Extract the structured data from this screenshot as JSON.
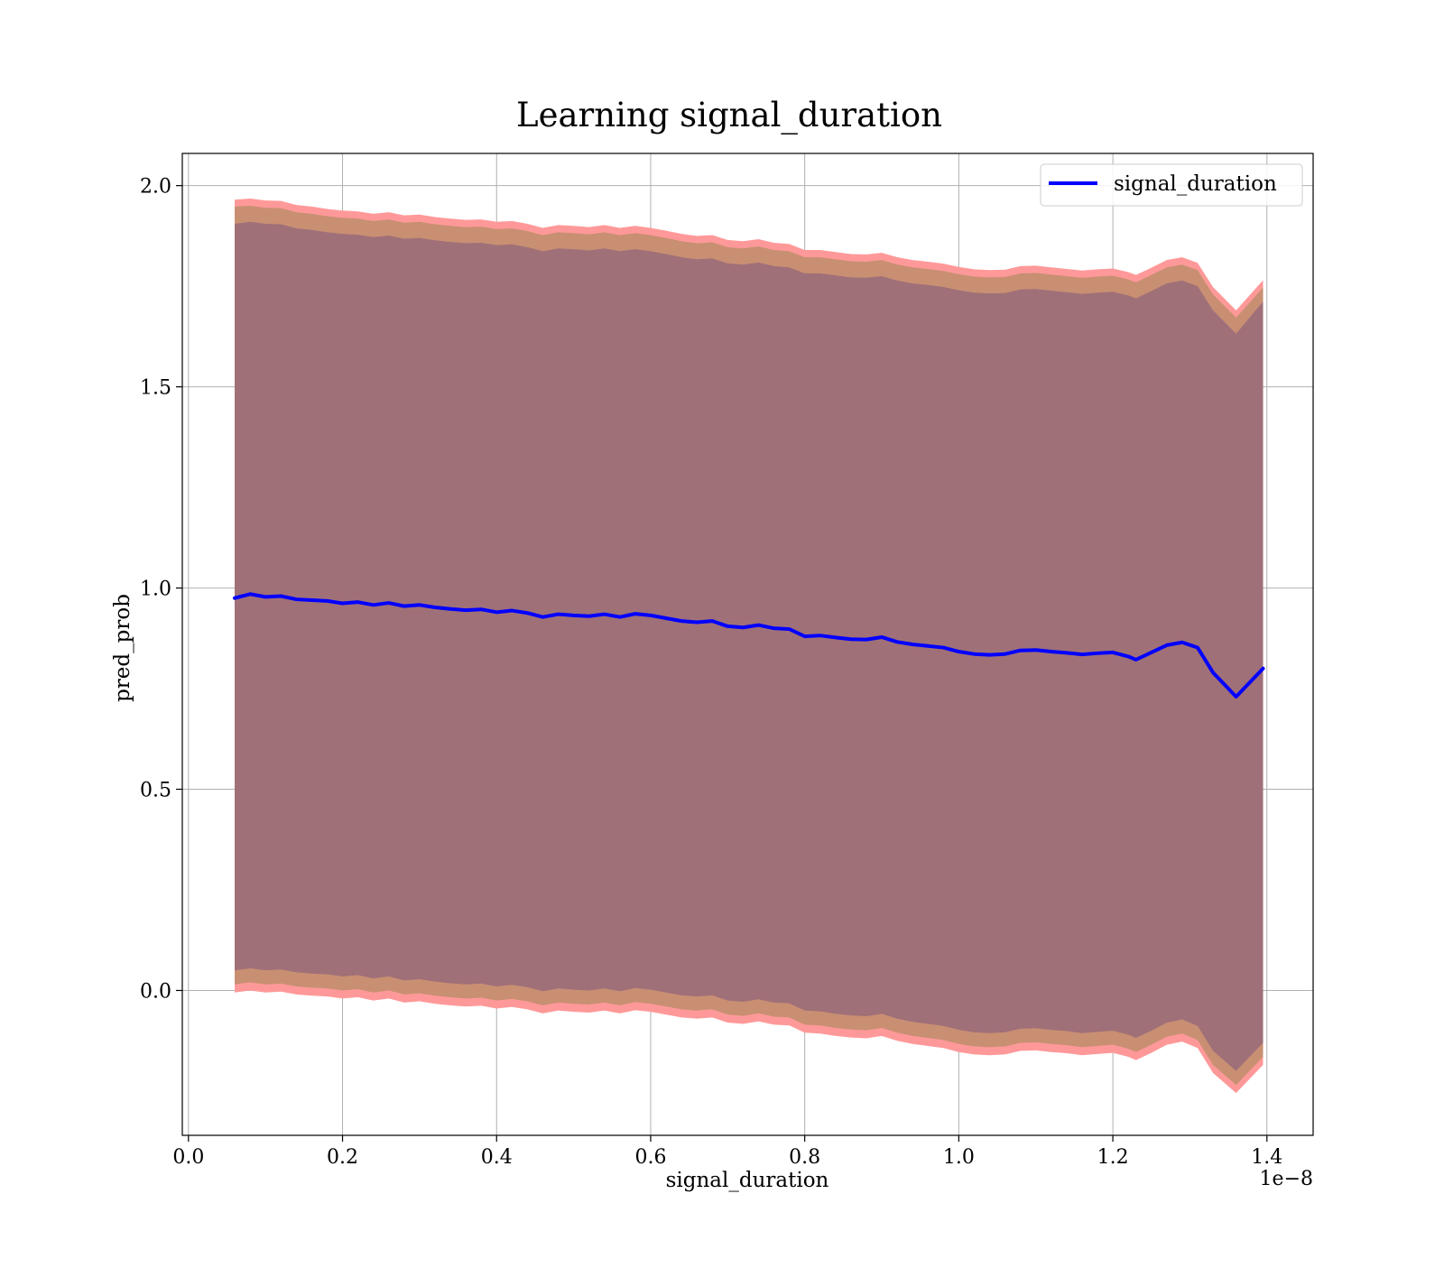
{
  "chart_data": {
    "type": "area",
    "title": "Learning signal_duration",
    "xlabel": "signal_duration",
    "ylabel": "pred_prob",
    "x_offset_label": "1e−8",
    "xlim": [
      -0.008,
      1.46
    ],
    "ylim": [
      -0.36,
      2.08
    ],
    "x_ticks": [
      0.0,
      0.2,
      0.4,
      0.6,
      0.8,
      1.0,
      1.2,
      1.4
    ],
    "x_tick_labels": [
      "0.0",
      "0.2",
      "0.4",
      "0.6",
      "0.8",
      "1.0",
      "1.2",
      "1.4"
    ],
    "y_ticks": [
      0.0,
      0.5,
      1.0,
      1.5,
      2.0
    ],
    "y_tick_labels": [
      "0.0",
      "0.5",
      "1.0",
      "1.5",
      "2.0"
    ],
    "grid": true,
    "legend_position": "top-right",
    "colors": {
      "line": "#0000ff",
      "band_outer": "#ff9999",
      "band_middle": "#c98f73",
      "band_inner": "#a07078",
      "grid": "#b0b0b0"
    },
    "series": [
      {
        "name": "signal_duration",
        "x": [
          0.06,
          0.08,
          0.1,
          0.12,
          0.14,
          0.16,
          0.18,
          0.2,
          0.22,
          0.24,
          0.26,
          0.28,
          0.3,
          0.32,
          0.34,
          0.36,
          0.38,
          0.4,
          0.42,
          0.44,
          0.46,
          0.48,
          0.5,
          0.52,
          0.54,
          0.56,
          0.58,
          0.6,
          0.62,
          0.64,
          0.66,
          0.68,
          0.7,
          0.72,
          0.74,
          0.76,
          0.78,
          0.8,
          0.82,
          0.84,
          0.86,
          0.88,
          0.9,
          0.92,
          0.94,
          0.96,
          0.98,
          1.0,
          1.02,
          1.04,
          1.06,
          1.08,
          1.1,
          1.12,
          1.14,
          1.16,
          1.18,
          1.2,
          1.22,
          1.23,
          1.25,
          1.27,
          1.29,
          1.31,
          1.33,
          1.36,
          1.395
        ],
        "y": [
          0.975,
          0.985,
          0.978,
          0.98,
          0.972,
          0.97,
          0.968,
          0.962,
          0.965,
          0.958,
          0.963,
          0.955,
          0.958,
          0.952,
          0.948,
          0.945,
          0.947,
          0.94,
          0.944,
          0.938,
          0.928,
          0.935,
          0.932,
          0.93,
          0.935,
          0.928,
          0.936,
          0.932,
          0.925,
          0.918,
          0.915,
          0.918,
          0.905,
          0.902,
          0.908,
          0.9,
          0.898,
          0.88,
          0.882,
          0.877,
          0.873,
          0.872,
          0.878,
          0.866,
          0.86,
          0.856,
          0.852,
          0.842,
          0.836,
          0.834,
          0.836,
          0.845,
          0.846,
          0.842,
          0.839,
          0.835,
          0.838,
          0.84,
          0.83,
          0.822,
          0.84,
          0.858,
          0.865,
          0.852,
          0.79,
          0.73,
          0.8
        ],
        "band_outer_upper": [
          1.965,
          1.968,
          1.963,
          1.962,
          1.952,
          1.948,
          1.942,
          1.938,
          1.936,
          1.93,
          1.934,
          1.926,
          1.928,
          1.922,
          1.918,
          1.915,
          1.916,
          1.91,
          1.912,
          1.905,
          1.895,
          1.902,
          1.9,
          1.897,
          1.902,
          1.895,
          1.9,
          1.895,
          1.888,
          1.88,
          1.875,
          1.877,
          1.865,
          1.862,
          1.867,
          1.858,
          1.855,
          1.84,
          1.84,
          1.835,
          1.83,
          1.829,
          1.833,
          1.822,
          1.815,
          1.811,
          1.806,
          1.798,
          1.792,
          1.79,
          1.791,
          1.8,
          1.801,
          1.797,
          1.793,
          1.789,
          1.792,
          1.794,
          1.785,
          1.778,
          1.796,
          1.815,
          1.822,
          1.808,
          1.748,
          1.69,
          1.765
        ],
        "band_middle_upper": [
          1.948,
          1.95,
          1.945,
          1.944,
          1.934,
          1.93,
          1.924,
          1.92,
          1.918,
          1.912,
          1.916,
          1.908,
          1.91,
          1.904,
          1.9,
          1.897,
          1.898,
          1.892,
          1.894,
          1.887,
          1.877,
          1.884,
          1.882,
          1.879,
          1.884,
          1.877,
          1.882,
          1.877,
          1.87,
          1.862,
          1.857,
          1.859,
          1.847,
          1.844,
          1.849,
          1.84,
          1.837,
          1.822,
          1.822,
          1.817,
          1.812,
          1.811,
          1.815,
          1.804,
          1.797,
          1.793,
          1.788,
          1.78,
          1.774,
          1.772,
          1.773,
          1.782,
          1.783,
          1.779,
          1.775,
          1.771,
          1.774,
          1.776,
          1.767,
          1.76,
          1.778,
          1.797,
          1.804,
          1.79,
          1.73,
          1.672,
          1.747
        ],
        "band_inner_upper": [
          1.905,
          1.91,
          1.905,
          1.904,
          1.894,
          1.89,
          1.884,
          1.88,
          1.878,
          1.872,
          1.876,
          1.868,
          1.87,
          1.864,
          1.86,
          1.857,
          1.858,
          1.852,
          1.854,
          1.847,
          1.837,
          1.844,
          1.842,
          1.839,
          1.844,
          1.837,
          1.842,
          1.837,
          1.83,
          1.822,
          1.817,
          1.819,
          1.807,
          1.804,
          1.809,
          1.8,
          1.797,
          1.782,
          1.782,
          1.777,
          1.772,
          1.771,
          1.775,
          1.764,
          1.757,
          1.753,
          1.748,
          1.74,
          1.734,
          1.732,
          1.733,
          1.742,
          1.743,
          1.739,
          1.735,
          1.731,
          1.734,
          1.736,
          1.727,
          1.72,
          1.738,
          1.757,
          1.764,
          1.75,
          1.69,
          1.632,
          1.712
        ],
        "band_inner_lower": [
          0.05,
          0.055,
          0.05,
          0.052,
          0.045,
          0.042,
          0.04,
          0.035,
          0.038,
          0.03,
          0.035,
          0.025,
          0.028,
          0.022,
          0.018,
          0.015,
          0.017,
          0.01,
          0.014,
          0.008,
          -0.002,
          0.005,
          0.002,
          0.0,
          0.005,
          -0.002,
          0.006,
          0.002,
          -0.005,
          -0.012,
          -0.015,
          -0.012,
          -0.025,
          -0.028,
          -0.022,
          -0.03,
          -0.032,
          -0.05,
          -0.052,
          -0.058,
          -0.062,
          -0.064,
          -0.058,
          -0.07,
          -0.078,
          -0.083,
          -0.088,
          -0.098,
          -0.104,
          -0.106,
          -0.104,
          -0.095,
          -0.094,
          -0.098,
          -0.101,
          -0.106,
          -0.103,
          -0.1,
          -0.11,
          -0.118,
          -0.1,
          -0.08,
          -0.072,
          -0.088,
          -0.15,
          -0.2,
          -0.13
        ],
        "band_middle_lower": [
          0.015,
          0.02,
          0.015,
          0.017,
          0.01,
          0.007,
          0.005,
          0.0,
          0.003,
          -0.005,
          0.0,
          -0.01,
          -0.007,
          -0.013,
          -0.017,
          -0.02,
          -0.018,
          -0.025,
          -0.021,
          -0.027,
          -0.037,
          -0.03,
          -0.033,
          -0.035,
          -0.03,
          -0.037,
          -0.029,
          -0.033,
          -0.04,
          -0.047,
          -0.05,
          -0.047,
          -0.06,
          -0.063,
          -0.057,
          -0.065,
          -0.067,
          -0.085,
          -0.087,
          -0.093,
          -0.097,
          -0.099,
          -0.093,
          -0.105,
          -0.113,
          -0.118,
          -0.123,
          -0.133,
          -0.139,
          -0.141,
          -0.139,
          -0.13,
          -0.129,
          -0.133,
          -0.136,
          -0.141,
          -0.138,
          -0.135,
          -0.145,
          -0.153,
          -0.135,
          -0.115,
          -0.107,
          -0.123,
          -0.185,
          -0.235,
          -0.165
        ],
        "band_outer_lower": [
          -0.005,
          0.0,
          -0.005,
          -0.003,
          -0.01,
          -0.013,
          -0.015,
          -0.02,
          -0.017,
          -0.025,
          -0.02,
          -0.03,
          -0.027,
          -0.033,
          -0.037,
          -0.04,
          -0.038,
          -0.045,
          -0.041,
          -0.047,
          -0.057,
          -0.05,
          -0.053,
          -0.055,
          -0.05,
          -0.057,
          -0.049,
          -0.053,
          -0.06,
          -0.067,
          -0.07,
          -0.067,
          -0.08,
          -0.083,
          -0.077,
          -0.085,
          -0.087,
          -0.105,
          -0.107,
          -0.113,
          -0.117,
          -0.119,
          -0.113,
          -0.125,
          -0.133,
          -0.138,
          -0.143,
          -0.153,
          -0.159,
          -0.161,
          -0.159,
          -0.15,
          -0.149,
          -0.153,
          -0.156,
          -0.161,
          -0.158,
          -0.155,
          -0.165,
          -0.173,
          -0.155,
          -0.135,
          -0.127,
          -0.143,
          -0.205,
          -0.255,
          -0.185
        ]
      }
    ]
  }
}
